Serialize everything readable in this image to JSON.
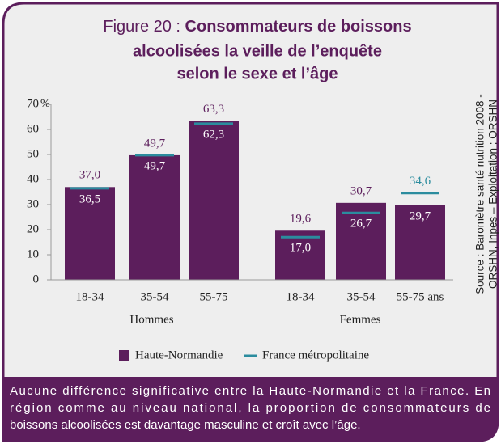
{
  "chart_data": {
    "type": "bar",
    "title_prefix": "Figure 20 :",
    "title": [
      "Consommateurs de boissons",
      "alcoolisées la veille de l’enquête",
      "selon le sexe et l’âge"
    ],
    "y_unit": "%",
    "categories": [
      "18-34",
      "35-54",
      "55-75",
      "18-34",
      "35-54",
      "55-75 ans"
    ],
    "groups": [
      "Hommes",
      "Femmes"
    ],
    "series": [
      {
        "name": "Haute-Normandie",
        "color": "#5c1e5c",
        "values": [
          37.0,
          49.7,
          63.3,
          19.6,
          30.7,
          29.7
        ],
        "value_labels": [
          "37,0",
          "49,7",
          "63,3",
          "19,6",
          "30,7",
          "29,7"
        ]
      },
      {
        "name": "France métropolitaine",
        "color": "#2b8c9e",
        "values": [
          36.5,
          49.7,
          62.3,
          17.0,
          26.7,
          34.6
        ],
        "value_labels": [
          "36,5",
          "49,7",
          "62,3",
          "17,0",
          "26,7",
          "34,6"
        ]
      }
    ],
    "ylim": [
      0,
      70
    ],
    "yticks": [
      0,
      10,
      20,
      30,
      40,
      50,
      60,
      70
    ],
    "source": [
      "Source : Baromètre santé nutrition 2008 -",
      "ORSHN, Inpes – Exploitation : ORSHN"
    ],
    "note": [
      "Aucune différence significative entre la Haute-Normandie et la France. En",
      "région comme au niveau national, la proportion de consommateurs de",
      "boissons alcoolisées est davantage masculine et croît avec l’âge."
    ]
  }
}
